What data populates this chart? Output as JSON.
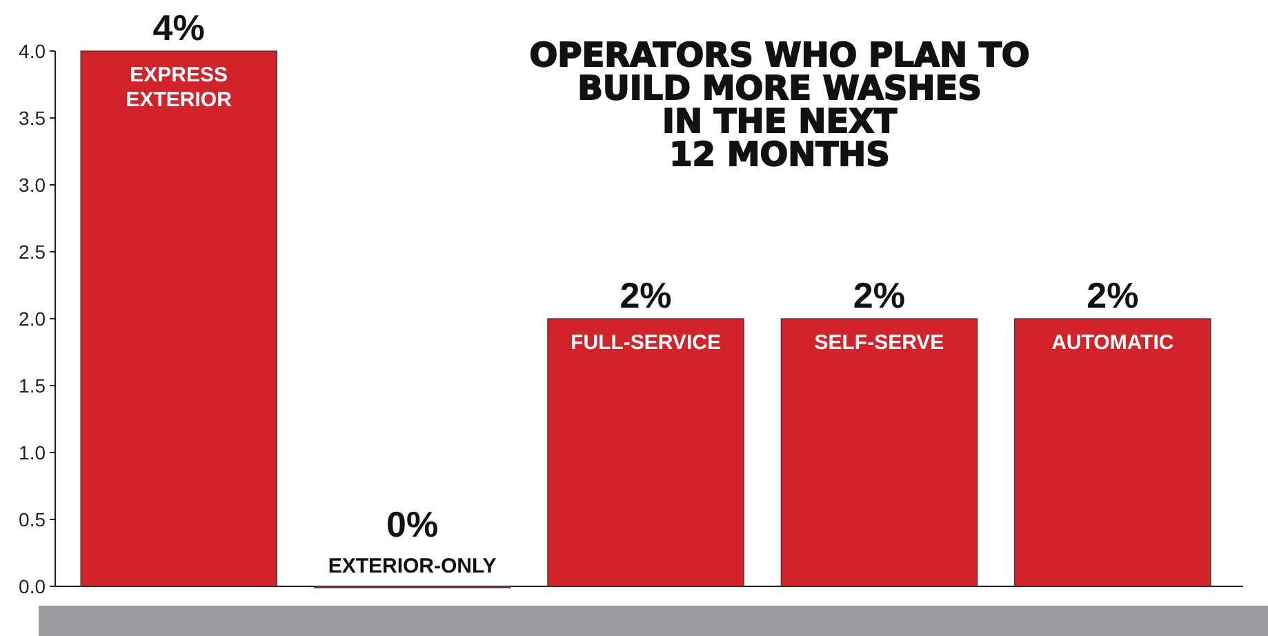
{
  "chart_data": {
    "type": "bar",
    "title": "OPERATORS WHO PLAN TO\nBUILD MORE WASHES\nIN THE NEXT\n12 MONTHS",
    "categories": [
      "EXPRESS EXTERIOR",
      "EXTERIOR-ONLY",
      "FULL-SERVICE",
      "SELF-SERVE",
      "AUTOMATIC"
    ],
    "values": [
      4,
      0,
      2,
      2,
      2
    ],
    "value_labels": [
      "4%",
      "0%",
      "2%",
      "2%",
      "2%"
    ],
    "color": "#d2232a",
    "ylim": [
      0,
      4
    ],
    "yticks": [
      {
        "value": 0,
        "label": "0.0"
      },
      0.5,
      {
        "value": 1,
        "label": "1.0"
      },
      1.5,
      {
        "value": 2,
        "label": "2.0"
      },
      2.5,
      {
        "value": 3,
        "label": "3.0"
      },
      3.5,
      {
        "value": 4,
        "label": "4.0"
      }
    ],
    "grid": false
  }
}
